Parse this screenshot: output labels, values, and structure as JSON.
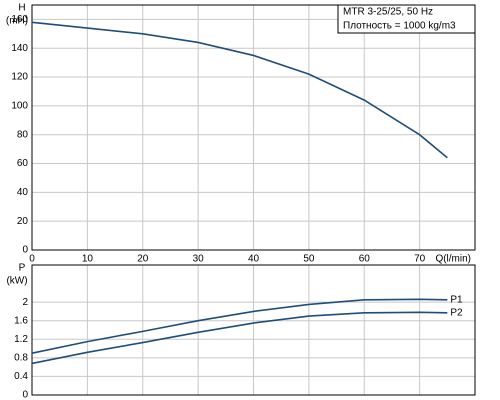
{
  "chart_data": [
    {
      "type": "line",
      "ylabel": "H",
      "yunit": "(mH)",
      "xlabel": "Q(l/min)",
      "annotations": [
        "MTR 3-25/25, 50 Hz",
        "Плотность = 1000 kg/m3"
      ],
      "x": [
        0,
        10,
        20,
        30,
        40,
        50,
        60,
        70,
        75
      ],
      "series": [
        {
          "color": "#1f4e79",
          "values": [
            158,
            154,
            150,
            144,
            135,
            122,
            104,
            80,
            64
          ]
        }
      ],
      "xlim": [
        0,
        80
      ],
      "xticks": [
        0,
        10,
        20,
        30,
        40,
        50,
        60,
        70
      ],
      "ylim": [
        0,
        170
      ],
      "yticks": [
        0,
        20,
        40,
        60,
        80,
        100,
        120,
        140,
        160
      ],
      "grid": true
    },
    {
      "type": "line",
      "ylabel": "P",
      "yunit": "(kW)",
      "x": [
        0,
        10,
        20,
        30,
        40,
        50,
        60,
        70,
        75
      ],
      "series": [
        {
          "name": "P1",
          "color": "#1f4e79",
          "values": [
            0.9,
            1.15,
            1.37,
            1.6,
            1.8,
            1.95,
            2.05,
            2.06,
            2.05
          ]
        },
        {
          "name": "P2",
          "color": "#1f4e79",
          "values": [
            0.68,
            0.92,
            1.13,
            1.35,
            1.55,
            1.7,
            1.77,
            1.78,
            1.77
          ]
        }
      ],
      "xlim": [
        0,
        80
      ],
      "xticks": [
        0,
        10,
        20,
        30,
        40,
        50,
        60,
        70
      ],
      "ylim": [
        0,
        2.8
      ],
      "yticks": [
        0,
        0.4,
        0.8,
        1.2,
        1.6,
        2
      ],
      "grid": true
    }
  ]
}
